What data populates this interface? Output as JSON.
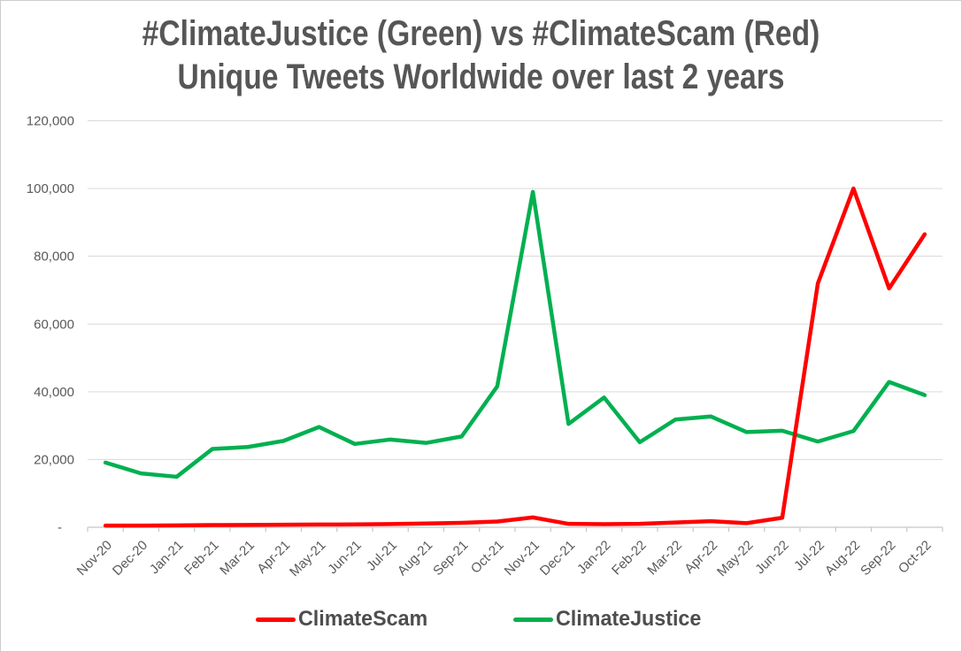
{
  "title": {
    "line1": "#ClimateJustice (Green) vs #ClimateScam (Red)",
    "line2": "Unique Tweets Worldwide over last 2 years"
  },
  "colors": {
    "climatescam_red": "#FF0000",
    "climatejustice_green": "#00B050",
    "gridline": "#D9D9D9",
    "axis": "#C6C6C6",
    "text_gray": "#595959",
    "title_gray": "#565656"
  },
  "chart_data": {
    "type": "line",
    "title": "#ClimateJustice (Green) vs #ClimateScam (Red) Unique Tweets Worldwide over last 2 years",
    "categories": [
      "Nov-20",
      "Dec-20",
      "Jan-21",
      "Feb-21",
      "Mar-21",
      "Apr-21",
      "May-21",
      "Jun-21",
      "Jul-21",
      "Aug-21",
      "Sep-21",
      "Oct-21",
      "Nov-21",
      "Dec-21",
      "Jan-22",
      "Feb-22",
      "Mar-22",
      "Apr-22",
      "May-22",
      "Jun-22",
      "Jul-22",
      "Aug-22",
      "Sep-22",
      "Oct-22"
    ],
    "series": [
      {
        "name": "ClimateScam",
        "color": "#FF0000",
        "values": [
          500,
          500,
          550,
          650,
          700,
          750,
          800,
          850,
          950,
          1100,
          1300,
          1700,
          2900,
          1000,
          900,
          1000,
          1400,
          1800,
          1200,
          2800,
          72000,
          100000,
          70500,
          86500
        ]
      },
      {
        "name": "ClimateJustice",
        "color": "#00B050",
        "values": [
          19100,
          15900,
          14900,
          23100,
          23700,
          25500,
          29600,
          24600,
          25900,
          24900,
          26800,
          41600,
          99000,
          30500,
          38300,
          25100,
          31800,
          32700,
          28100,
          28500,
          25300,
          28400,
          42900,
          39000
        ]
      }
    ],
    "ylim": [
      0,
      120000
    ],
    "yticks": [
      {
        "value": 0,
        "label": "-"
      },
      {
        "value": 20000,
        "label": "20,000"
      },
      {
        "value": 40000,
        "label": "40,000"
      },
      {
        "value": 60000,
        "label": "60,000"
      },
      {
        "value": 80000,
        "label": "80,000"
      },
      {
        "value": 100000,
        "label": "100,000"
      },
      {
        "value": 120000,
        "label": "120,000"
      }
    ],
    "grid": "horizontal",
    "legend_position": "bottom",
    "x_label_rotation": -45
  }
}
